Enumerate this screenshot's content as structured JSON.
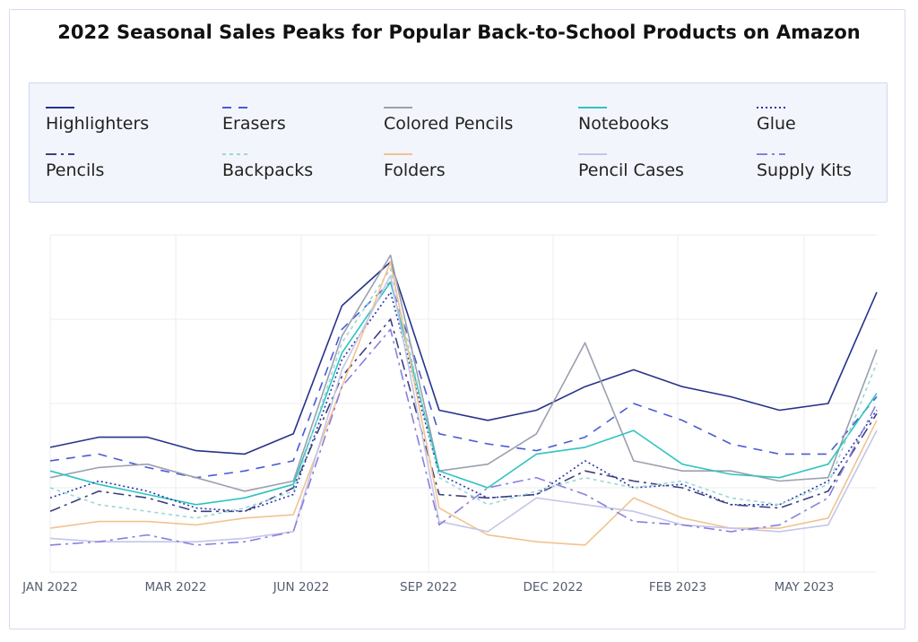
{
  "title": "2022 Seasonal Sales Peaks for Popular Back-to-School Products on Amazon",
  "chart_data": {
    "type": "line",
    "title": "2022 Seasonal Sales Peaks for Popular Back-to-School Products on Amazon",
    "xlabel": "",
    "ylabel": "",
    "x_ticks": [
      "JAN 2022",
      "MAR 2022",
      "JUN 2022",
      "SEP 2022",
      "DEC 2022",
      "FEB 2023",
      "MAY 2023"
    ],
    "x_range": [
      "2022-01",
      "2023-06"
    ],
    "y_range": [
      0,
      100
    ],
    "y_tick_labels": "none",
    "grid": true,
    "legend_position": "top",
    "x": [
      "2022-01",
      "2022-02",
      "2022-03",
      "2022-04",
      "2022-05",
      "2022-06",
      "2022-07",
      "2022-08",
      "2022-09",
      "2022-10",
      "2022-11",
      "2022-12",
      "2023-01",
      "2023-02",
      "2023-03",
      "2023-04",
      "2023-05",
      "2023-06"
    ],
    "series": [
      {
        "name": "Highlighters",
        "color": "#26338a",
        "dash": "solid",
        "values": [
          37,
          40,
          40,
          36,
          35,
          41,
          79,
          92,
          48,
          45,
          48,
          55,
          60,
          55,
          52,
          48,
          50,
          83
        ]
      },
      {
        "name": "Erasers",
        "color": "#4a5bd6",
        "dash": "10,8",
        "values": [
          33,
          35,
          31,
          28,
          30,
          33,
          72,
          86,
          41,
          38,
          36,
          40,
          50,
          45,
          38,
          35,
          35,
          52
        ]
      },
      {
        "name": "Colored Pencils",
        "color": "#9aa0ae",
        "dash": "solid",
        "values": [
          28,
          31,
          32,
          28,
          24,
          27,
          70,
          94,
          30,
          32,
          41,
          68,
          33,
          30,
          30,
          27,
          28,
          66
        ]
      },
      {
        "name": "Notebooks",
        "color": "#2ec4bf",
        "dash": "solid",
        "values": [
          30,
          26,
          23,
          20,
          22,
          26,
          65,
          86,
          30,
          25,
          35,
          37,
          42,
          32,
          29,
          28,
          32,
          53
        ]
      },
      {
        "name": "Glue",
        "color": "#2436a8",
        "dash": "2,3",
        "values": [
          22,
          27,
          24,
          19,
          18,
          23,
          63,
          83,
          29,
          22,
          23,
          33,
          25,
          26,
          20,
          20,
          27,
          48
        ]
      },
      {
        "name": "Pencils",
        "color": "#3d4080",
        "dash": "12,5,3,5",
        "values": [
          18,
          24,
          22,
          18,
          18,
          25,
          58,
          75,
          23,
          22,
          23,
          30,
          27,
          25,
          20,
          19,
          24,
          47
        ]
      },
      {
        "name": "Backpacks",
        "color": "#9ad8d6",
        "dash": "4,4",
        "values": [
          25,
          20,
          18,
          16,
          19,
          24,
          68,
          90,
          28,
          20,
          24,
          28,
          25,
          27,
          22,
          20,
          26,
          62
        ]
      },
      {
        "name": "Folders",
        "color": "#f2c28f",
        "dash": "solid",
        "values": [
          13,
          15,
          15,
          14,
          16,
          17,
          55,
          92,
          19,
          11,
          9,
          8,
          22,
          16,
          13,
          13,
          16,
          45
        ]
      },
      {
        "name": "Pencil Cases",
        "color": "#c3c6e8",
        "dash": "solid",
        "values": [
          10,
          9,
          9,
          9,
          10,
          12,
          60,
          88,
          15,
          12,
          22,
          20,
          18,
          14,
          13,
          12,
          14,
          42
        ]
      },
      {
        "name": "Supply Kits",
        "color": "#8a7fe0",
        "dash": "12,5,3,5",
        "values": [
          8,
          9,
          11,
          8,
          9,
          12,
          55,
          72,
          14,
          25,
          28,
          23,
          15,
          14,
          12,
          14,
          22,
          50
        ]
      }
    ]
  }
}
